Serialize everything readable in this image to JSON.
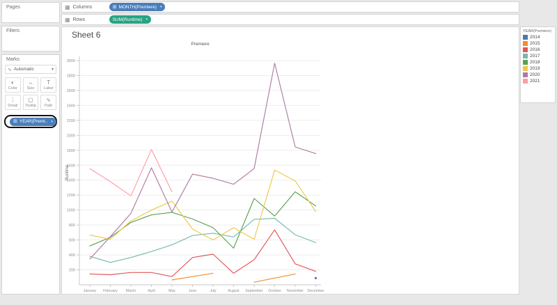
{
  "app": {
    "background": "#e8e8e8",
    "highlight_border": "#111111"
  },
  "shelves": {
    "columns": {
      "label": "Columns",
      "pill": {
        "text": "MONTH(Premiere)",
        "color": "#4a7ebb",
        "prefix_icon": "plus-box-icon",
        "caret_icon": "chevron-down-icon"
      }
    },
    "rows": {
      "label": "Rows",
      "pill": {
        "text": "SUM(Runtime)",
        "color": "#27a383",
        "caret_icon": "chevron-down-icon"
      }
    }
  },
  "sidebar": {
    "pages": {
      "title": "Pages"
    },
    "filters": {
      "title": "Filters"
    },
    "marks": {
      "title": "Marks",
      "mark_type": "Automatic",
      "buttons": [
        {
          "label": "Color",
          "icon": "color-icon",
          "glyph": "◐"
        },
        {
          "label": "Size",
          "icon": "size-icon",
          "glyph": "↔"
        },
        {
          "label": "Label",
          "icon": "label-icon",
          "glyph": "T"
        },
        {
          "label": "Detail",
          "icon": "detail-icon",
          "glyph": "⋮"
        },
        {
          "label": "Tooltip",
          "icon": "tooltip-icon",
          "glyph": "▢"
        },
        {
          "label": "Path",
          "icon": "path-icon",
          "glyph": "∿"
        }
      ],
      "color_pill": {
        "text": "YEAR(Premi..",
        "color": "#4a7ebb",
        "prefix_icon": "plus-box-icon",
        "caret_icon": "chevron-down-icon"
      }
    }
  },
  "sheet": {
    "title": "Sheet 6"
  },
  "legend": {
    "title": "YEAR(Premiere)",
    "items": [
      {
        "label": "2014",
        "color": "#4e79a7"
      },
      {
        "label": "2015",
        "color": "#f28e2b"
      },
      {
        "label": "2016",
        "color": "#e15759"
      },
      {
        "label": "2017",
        "color": "#76b7b2"
      },
      {
        "label": "2018",
        "color": "#59a14f"
      },
      {
        "label": "2019",
        "color": "#edc948"
      },
      {
        "label": "2020",
        "color": "#b07aa1"
      },
      {
        "label": "2021",
        "color": "#ff9da7"
      }
    ]
  },
  "chart_data": {
    "type": "line",
    "title": "Premiere",
    "ylabel": "Runtime",
    "ylim": [
      0,
      3000
    ],
    "ytick_step": 200,
    "grid": true,
    "legend_position": "right",
    "categories": [
      "January",
      "February",
      "March",
      "April",
      "May",
      "June",
      "July",
      "August",
      "September",
      "October",
      "November",
      "December"
    ],
    "series": [
      {
        "name": "2014",
        "color": "#4e79a7",
        "values": [
          null,
          null,
          null,
          null,
          null,
          null,
          null,
          null,
          null,
          null,
          null,
          90
        ]
      },
      {
        "name": "2015",
        "color": "#f28e2b",
        "values": [
          null,
          null,
          null,
          null,
          65,
          110,
          155,
          null,
          35,
          90,
          145,
          null
        ]
      },
      {
        "name": "2016",
        "color": "#e15759",
        "values": [
          145,
          135,
          165,
          165,
          110,
          365,
          410,
          155,
          335,
          735,
          280,
          180
        ]
      },
      {
        "name": "2017",
        "color": "#76b7b2",
        "values": [
          380,
          300,
          365,
          445,
          535,
          660,
          690,
          640,
          875,
          890,
          670,
          565
        ]
      },
      {
        "name": "2018",
        "color": "#59a14f",
        "values": [
          520,
          635,
          835,
          935,
          970,
          880,
          765,
          490,
          1155,
          920,
          1245,
          1055
        ]
      },
      {
        "name": "2019",
        "color": "#edc948",
        "values": [
          665,
          610,
          855,
          1000,
          1120,
          745,
          600,
          765,
          610,
          1535,
          1390,
          980
        ]
      },
      {
        "name": "2020",
        "color": "#b07aa1",
        "values": [
          345,
          645,
          955,
          1565,
          975,
          1480,
          1425,
          1345,
          1555,
          2965,
          1845,
          1755
        ]
      },
      {
        "name": "2021",
        "color": "#ff9da7",
        "values": [
          1555,
          1380,
          1190,
          1810,
          1245,
          null,
          null,
          null,
          null,
          null,
          null,
          null
        ]
      }
    ]
  }
}
